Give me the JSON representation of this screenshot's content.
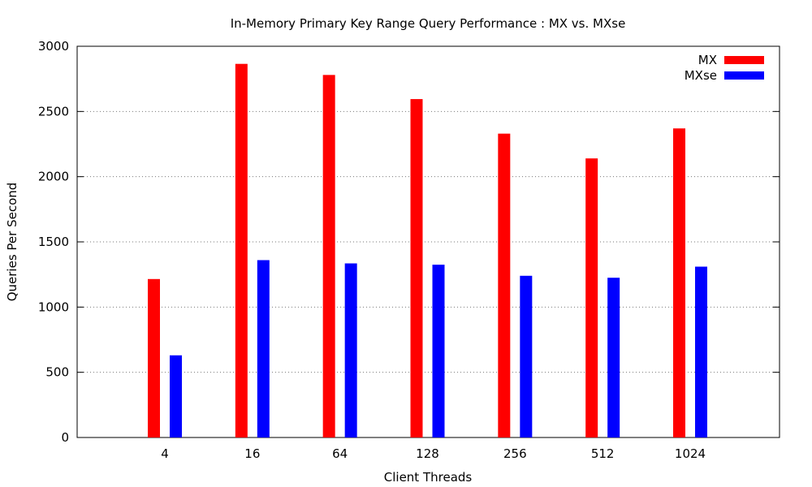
{
  "chart_data": {
    "type": "bar",
    "title": "In-Memory Primary Key Range Query Performance : MX vs. MXse",
    "xlabel": "Client Threads",
    "ylabel": "Queries Per Second",
    "categories": [
      "4",
      "16",
      "64",
      "128",
      "256",
      "512",
      "1024"
    ],
    "series": [
      {
        "name": "MX",
        "color": "#ff0000",
        "values": [
          1215,
          2865,
          2780,
          2595,
          2330,
          2140,
          2370
        ]
      },
      {
        "name": "MXse",
        "color": "#0000ff",
        "values": [
          630,
          1360,
          1335,
          1325,
          1240,
          1225,
          1310
        ]
      }
    ],
    "ylim": [
      0,
      3000
    ],
    "yticks": [
      0,
      500,
      1000,
      1500,
      2000,
      2500,
      3000
    ],
    "grid": true,
    "legend": "top-right"
  }
}
